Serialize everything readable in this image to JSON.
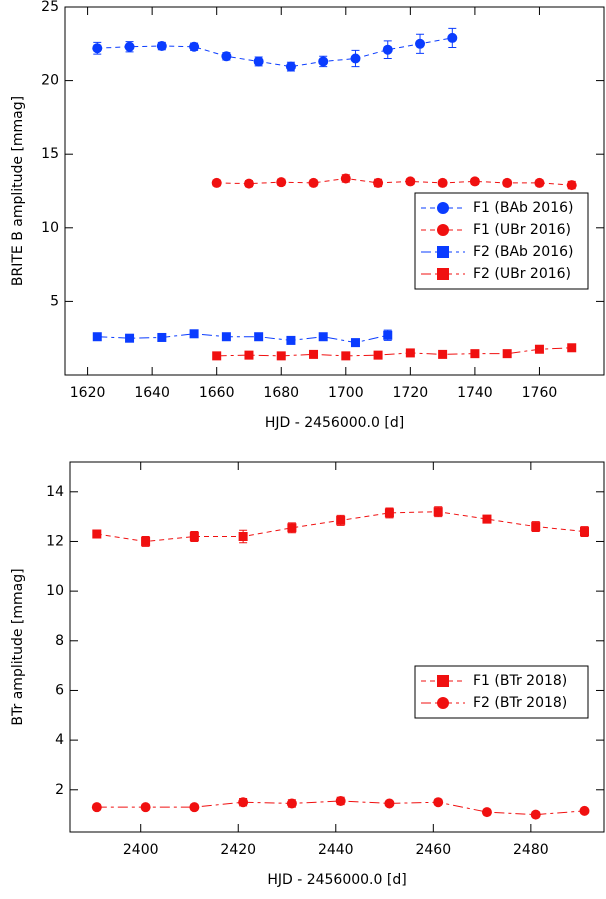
{
  "chart_data": [
    {
      "type": "line",
      "xlabel": "HJD - 2456000.0 [d]",
      "ylabel": "BRITE B amplitude [mmag]",
      "xlim": [
        1613,
        1780
      ],
      "ylim": [
        0,
        25
      ],
      "xticks": [
        1620,
        1640,
        1660,
        1680,
        1700,
        1720,
        1740,
        1760
      ],
      "yticks": [
        5,
        10,
        15,
        20,
        25
      ],
      "legend": "center right",
      "series": [
        {
          "name": "F1 (BAb 2016)",
          "color": "#0a3cff",
          "marker": "circle",
          "linestyle": "dashed",
          "x": [
            1623,
            1633,
            1643,
            1653,
            1663,
            1673,
            1683,
            1693,
            1703,
            1713,
            1723,
            1733
          ],
          "values": [
            22.2,
            22.3,
            22.35,
            22.3,
            21.65,
            21.3,
            20.95,
            21.3,
            21.5,
            22.1,
            22.5,
            22.9
          ],
          "errors": [
            0.4,
            0.35,
            0.25,
            0.25,
            0.25,
            0.3,
            0.3,
            0.35,
            0.55,
            0.6,
            0.65,
            0.65
          ]
        },
        {
          "name": "F1 (UBr 2016)",
          "color": "#f01010",
          "marker": "circle",
          "linestyle": "dashed",
          "x": [
            1660,
            1670,
            1680,
            1690,
            1700,
            1710,
            1720,
            1730,
            1740,
            1750,
            1760,
            1770
          ],
          "values": [
            13.05,
            13.0,
            13.1,
            13.05,
            13.35,
            13.05,
            13.15,
            13.05,
            13.15,
            13.05,
            13.05,
            12.9
          ],
          "errors": [
            0.2,
            0.2,
            0.2,
            0.2,
            0.25,
            0.25,
            0.2,
            0.2,
            0.2,
            0.2,
            0.2,
            0.25
          ]
        },
        {
          "name": "F2 (BAb 2016)",
          "color": "#0a3cff",
          "marker": "square",
          "linestyle": "dashdot",
          "x": [
            1623,
            1633,
            1643,
            1653,
            1663,
            1673,
            1683,
            1693,
            1703,
            1713
          ],
          "values": [
            2.6,
            2.5,
            2.55,
            2.8,
            2.6,
            2.6,
            2.35,
            2.6,
            2.2,
            2.7
          ],
          "errors": [
            0.15,
            0.15,
            0.15,
            0.2,
            0.15,
            0.15,
            0.15,
            0.2,
            0.2,
            0.35
          ]
        },
        {
          "name": "F2 (UBr 2016)",
          "color": "#f01010",
          "marker": "square",
          "linestyle": "dashdot",
          "x": [
            1660,
            1670,
            1680,
            1690,
            1700,
            1710,
            1720,
            1730,
            1740,
            1750,
            1760,
            1770
          ],
          "values": [
            1.3,
            1.35,
            1.3,
            1.4,
            1.3,
            1.35,
            1.5,
            1.4,
            1.45,
            1.45,
            1.75,
            1.85
          ],
          "errors": [
            0.15,
            0.15,
            0.15,
            0.15,
            0.15,
            0.15,
            0.15,
            0.15,
            0.15,
            0.15,
            0.15,
            0.15
          ]
        }
      ]
    },
    {
      "type": "line",
      "xlabel": "HJD - 2456000.0 [d]",
      "ylabel": "BTr amplitude [mmag]",
      "xlim": [
        2385.5,
        2495
      ],
      "ylim": [
        0.3,
        15.2
      ],
      "xticks": [
        2400,
        2420,
        2440,
        2460,
        2480
      ],
      "yticks": [
        2,
        4,
        6,
        8,
        10,
        12,
        14
      ],
      "legend": "lower right",
      "series": [
        {
          "name": "F1 (BTr 2018)",
          "color": "#f01010",
          "marker": "square",
          "linestyle": "dashed",
          "x": [
            2391,
            2401,
            2411,
            2421,
            2431,
            2441,
            2451,
            2461,
            2471,
            2481,
            2491
          ],
          "values": [
            12.3,
            12.0,
            12.2,
            12.2,
            12.55,
            12.85,
            13.15,
            13.2,
            12.9,
            12.6,
            12.4
          ],
          "errors": [
            0.15,
            0.2,
            0.2,
            0.25,
            0.2,
            0.2,
            0.2,
            0.2,
            0.15,
            0.2,
            0.2
          ]
        },
        {
          "name": "F2 (BTr 2018)",
          "color": "#f01010",
          "marker": "circle",
          "linestyle": "dashdot",
          "x": [
            2391,
            2401,
            2411,
            2421,
            2431,
            2441,
            2451,
            2461,
            2471,
            2481,
            2491
          ],
          "values": [
            1.3,
            1.3,
            1.3,
            1.5,
            1.45,
            1.55,
            1.45,
            1.5,
            1.1,
            1.0,
            1.15
          ],
          "errors": [
            0.1,
            0.1,
            0.1,
            0.15,
            0.15,
            0.15,
            0.1,
            0.1,
            0.1,
            0.1,
            0.1
          ]
        }
      ]
    }
  ]
}
